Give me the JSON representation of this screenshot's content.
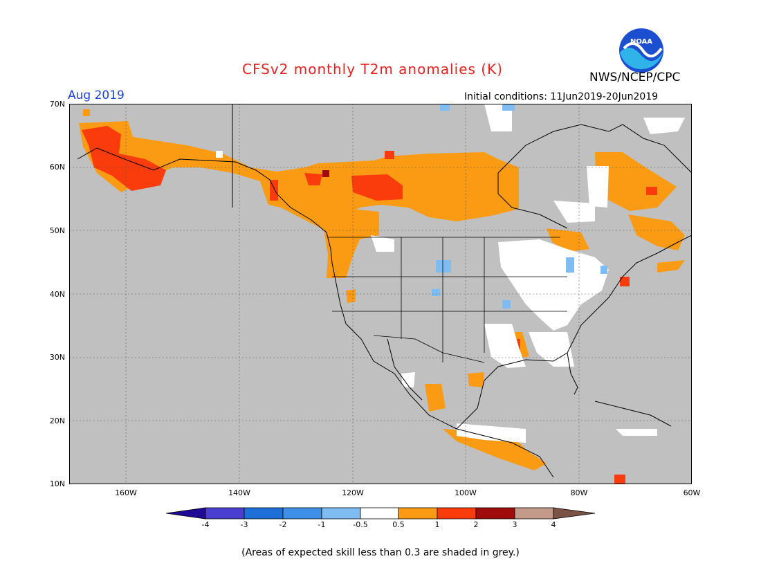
{
  "title": "CFSv2 monthly T2m anomalies (K)",
  "org": "NWS/NCEP/CPC",
  "logo_text": "NOAA",
  "month": "Aug 2019",
  "init": "Initial conditions: 11Jun2019-20Jun2019",
  "lat_labels": [
    "70N",
    "60N",
    "50N",
    "40N",
    "30N",
    "20N",
    "10N"
  ],
  "lon_labels": [
    "160W",
    "140W",
    "120W",
    "100W",
    "80W",
    "60W"
  ],
  "colorbar": {
    "labels": [
      "-4",
      "-3",
      "-2",
      "-1",
      "-0.5",
      "0.5",
      "1",
      "2",
      "3",
      "4"
    ],
    "colors": [
      "#1e0a96",
      "#4a3fd0",
      "#1f6fd8",
      "#3d8fe8",
      "#7fbcf2",
      "#ffffff",
      "#fb9b13",
      "#fa3c0d",
      "#a00c0c",
      "#c49a8a",
      "#7a5345"
    ]
  },
  "note": "(Areas of expected skill less than 0.3 are shaded in grey.)",
  "colors": {
    "grey": "#c0c0c0",
    "orange": "#fb9b13",
    "red": "#fa3c0d",
    "darkred": "#a00c0c",
    "lightblue": "#7fbcf2"
  }
}
